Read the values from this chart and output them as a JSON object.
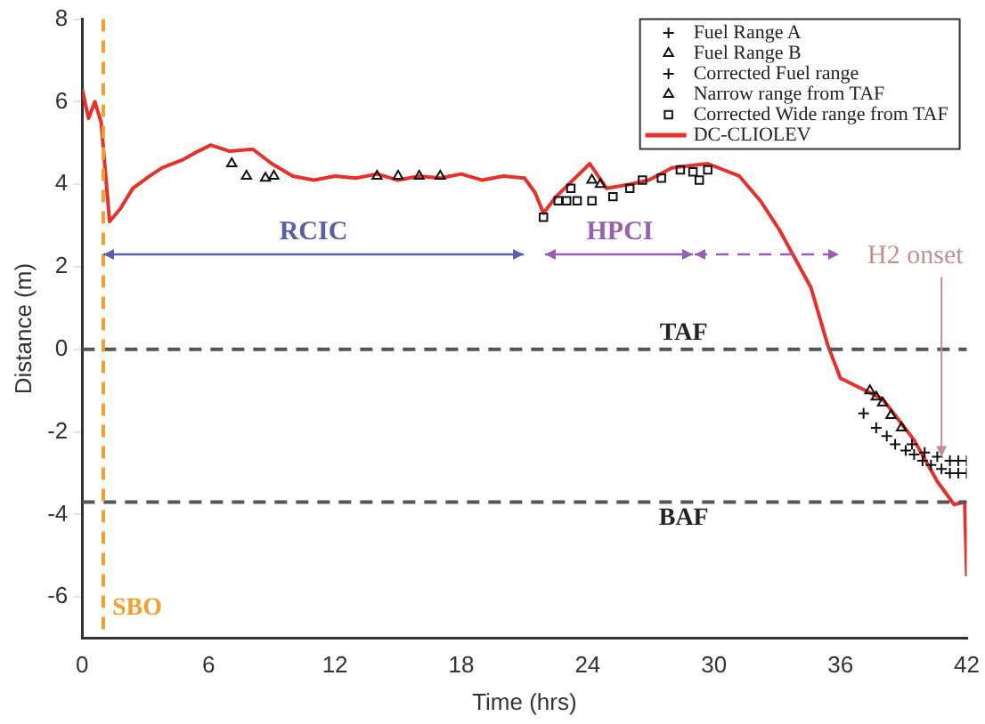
{
  "chart_data": {
    "type": "scatter",
    "xlabel": "Time (hrs)",
    "ylabel": "Distance (m)",
    "xlim": [
      0,
      42
    ],
    "xticks": [
      0,
      6,
      12,
      18,
      24,
      30,
      36,
      42
    ],
    "ylim": [
      -7,
      8
    ],
    "yticks": [
      -6,
      -4,
      -2,
      0,
      2,
      4,
      6,
      8
    ],
    "grid": false,
    "legend": "top right",
    "series": [
      {
        "name": "Fuel Range A",
        "color": "#111111",
        "marker": "cross",
        "x": [
          37.1,
          37.7,
          38.2,
          38.6,
          39.1,
          39.5,
          39.9,
          40.3,
          40.8,
          41.2,
          41.6,
          42
        ],
        "values": [
          -1.55,
          -1.9,
          -2.1,
          -2.3,
          -2.45,
          -2.55,
          -2.7,
          -2.8,
          -2.9,
          -3.0,
          -3.0,
          -3.0
        ]
      },
      {
        "name": "Fuel Range B",
        "color": "#111111",
        "marker": "triangle",
        "x": [
          37.4,
          37.7,
          38,
          38.4,
          38.9
        ],
        "values": [
          -1.0,
          -1.15,
          -1.3,
          -1.6,
          -1.9
        ]
      },
      {
        "name": "Corrected Fuel range",
        "color": "#111111",
        "marker": "cross",
        "x": [
          39.4,
          40,
          40.6,
          41.2,
          41.6,
          42
        ],
        "values": [
          -2.3,
          -2.5,
          -2.6,
          -2.7,
          -2.7,
          -2.7
        ]
      },
      {
        "name": "Narrow range from TAF",
        "color": "#111111",
        "marker": "triangle",
        "x": [
          7.1,
          7.8,
          8.7,
          9.1,
          14,
          15,
          16,
          17,
          24.2,
          24.6
        ],
        "values": [
          4.5,
          4.2,
          4.15,
          4.2,
          4.2,
          4.2,
          4.2,
          4.2,
          4.1,
          4.0
        ]
      },
      {
        "name": "Corrected Wide range from TAF",
        "color": "#111111",
        "marker": "square",
        "x": [
          21.9,
          22.6,
          23.0,
          23.2,
          23.5,
          24.2,
          25.2,
          26.0,
          26.6,
          27.5,
          28.4,
          29.0,
          29.3,
          29.7
        ],
        "values": [
          3.2,
          3.6,
          3.6,
          3.9,
          3.6,
          3.6,
          3.7,
          3.9,
          4.1,
          4.15,
          4.35,
          4.3,
          4.1,
          4.35
        ]
      },
      {
        "name": "DC-CLIOLEV",
        "type": "line",
        "color": "#e8302a",
        "x": [
          0,
          0.3,
          0.6,
          0.9,
          1.3,
          1.8,
          2.4,
          3.2,
          3.8,
          4.8,
          5.5,
          6.1,
          7,
          8.1,
          9,
          10,
          11,
          12,
          13,
          14,
          15,
          16,
          17,
          18,
          19,
          20,
          21,
          21.5,
          21.9,
          22.5,
          23.5,
          24.1,
          24.9,
          26,
          26.9,
          28,
          29.7,
          31.2,
          32.2,
          33.1,
          34.6,
          35.4,
          36,
          38,
          39.5,
          40.6,
          41.4,
          41.9,
          42
        ],
        "values": [
          6.3,
          5.6,
          6.0,
          5.5,
          3.1,
          3.4,
          3.9,
          4.2,
          4.4,
          4.6,
          4.8,
          4.95,
          4.8,
          4.85,
          4.5,
          4.2,
          4.1,
          4.2,
          4.15,
          4.25,
          4.1,
          4.2,
          4.15,
          4.25,
          4.1,
          4.2,
          4.15,
          3.8,
          3.3,
          3.7,
          4.2,
          4.5,
          3.9,
          4.0,
          4.1,
          4.4,
          4.5,
          4.2,
          3.6,
          2.9,
          1.5,
          0.1,
          -0.7,
          -1.2,
          -2.2,
          -3.2,
          -3.76,
          -3.7,
          -5.5
        ]
      }
    ],
    "ref_lines": [
      {
        "axis": "y",
        "value": 0,
        "label": "TAF",
        "color": "#555555",
        "line_style": "dashed"
      },
      {
        "axis": "y",
        "value": -3.7,
        "label": "BAF",
        "color": "#555555",
        "line_style": "dashed"
      },
      {
        "axis": "x",
        "value": 1,
        "label": "SBO",
        "color": "#f0a030",
        "line_style": "dashed"
      }
    ],
    "annotations": [
      {
        "text": "H2 onset",
        "x": 40.8,
        "y": -2.6
      },
      "RCIC",
      "HPCI"
    ]
  }
}
